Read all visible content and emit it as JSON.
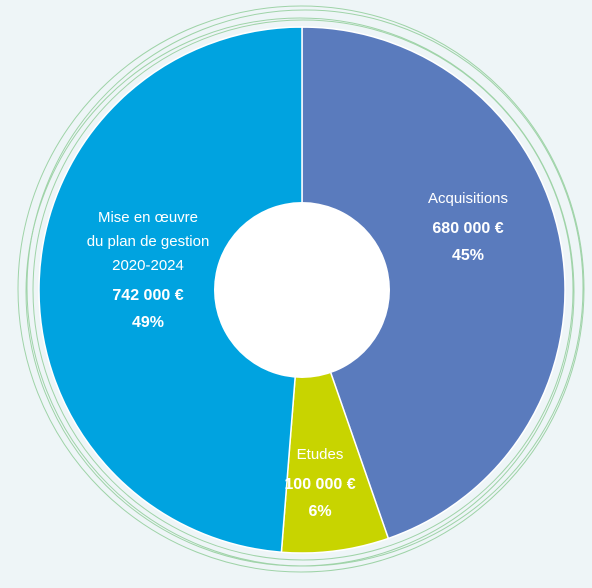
{
  "chart_data": {
    "type": "donut",
    "categories": [
      "Acquisitions",
      "Etudes",
      "Mise en œuvre\ndu plan de gestion\n2020-2024"
    ],
    "values": [
      680000,
      100000,
      742000
    ],
    "value_labels": [
      "680 000 €",
      "100 000 €",
      "742 000 €"
    ],
    "percentages": [
      45,
      6,
      49
    ],
    "percent_labels": [
      "45%",
      "6%",
      "49%"
    ],
    "colors": [
      "#5a7bbd",
      "#c8d400",
      "#00a3e0"
    ]
  }
}
